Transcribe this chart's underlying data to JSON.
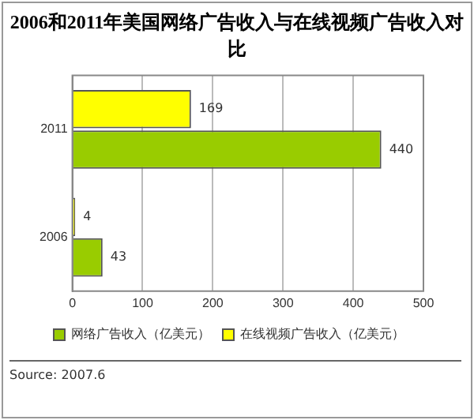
{
  "chart_data": {
    "type": "bar",
    "orientation": "horizontal",
    "title": "2006和2011年美国网络广告收入与在线视频广告收入对比",
    "categories": [
      "2011",
      "2006"
    ],
    "series": [
      {
        "name": "网络广告收入（亿美元）",
        "color": "#99cc00",
        "values": [
          440,
          43
        ]
      },
      {
        "name": "在线视频广告收入（亿美元）",
        "color": "#ffff00",
        "values": [
          169,
          4
        ]
      }
    ],
    "xlim": [
      0,
      500
    ],
    "xticks": [
      0,
      100,
      200,
      300,
      400,
      500
    ],
    "grid": "x",
    "legend": "bottom",
    "data_labels": true,
    "annotations": [
      "Source: 2007.6"
    ]
  }
}
